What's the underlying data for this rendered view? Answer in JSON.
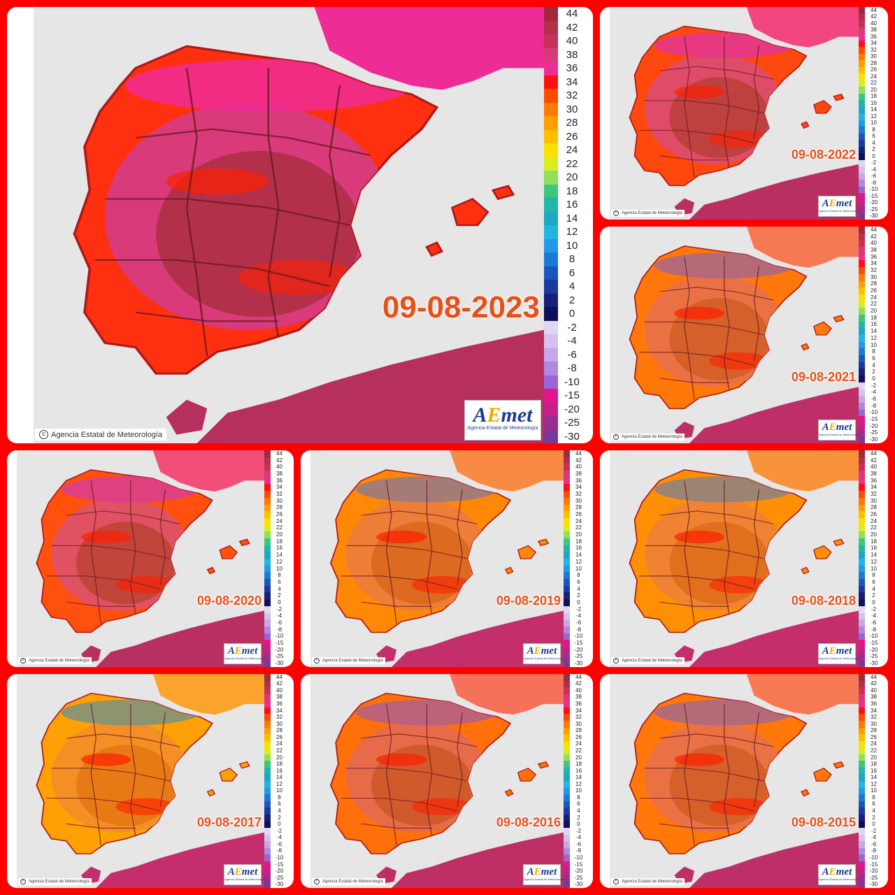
{
  "colors": {
    "background": "#ff0000",
    "panel": "#ffffff",
    "sea": "#e6e6e6",
    "date_label": "#e8501a",
    "logo_blue": "#1a3d8f",
    "logo_yellow": "#f2a900"
  },
  "scale": {
    "labels": [
      "44",
      "42",
      "40",
      "38",
      "36",
      "34",
      "32",
      "30",
      "28",
      "26",
      "24",
      "22",
      "20",
      "18",
      "16",
      "14",
      "12",
      "10",
      "8",
      "6",
      "4",
      "2",
      "0",
      "-2",
      "-4",
      "-6",
      "-8",
      "-10",
      "-15",
      "-20",
      "-25",
      "-30"
    ],
    "colors": [
      "#a02a3c",
      "#b2304a",
      "#c43258",
      "#d63a78",
      "#ee2c96",
      "#ff1010",
      "#ff4a00",
      "#ff7a00",
      "#ff9e00",
      "#ffbf00",
      "#ffe000",
      "#d7ef1e",
      "#8fe05a",
      "#3ec67a",
      "#22b6a6",
      "#1ca7c4",
      "#1fb6e2",
      "#209ae8",
      "#1c7ad6",
      "#1a56bb",
      "#1a3a9e",
      "#15207a",
      "#10105a",
      "#e2d7f1",
      "#d3c2ed",
      "#c3a8ea",
      "#ad89e0",
      "#9966d8",
      "#e21688",
      "#c4208a",
      "#9a2c92",
      "#7a3896"
    ]
  },
  "copyright": "Agencia Estatal de Meteorología",
  "logo": {
    "word_a": "A",
    "word_e": "E",
    "word_rest": "met",
    "subtitle": "Agencia Estatal de Meteorología"
  },
  "panels": [
    {
      "date": "09-08-2023",
      "intensity": 1.0
    },
    {
      "date": "09-08-2022",
      "intensity": 0.85
    },
    {
      "date": "09-08-2021",
      "intensity": 0.55
    },
    {
      "date": "09-08-2020",
      "intensity": 0.8
    },
    {
      "date": "09-08-2019",
      "intensity": 0.45
    },
    {
      "date": "09-08-2018",
      "intensity": 0.4
    },
    {
      "date": "09-08-2017",
      "intensity": 0.3
    },
    {
      "date": "09-08-2016",
      "intensity": 0.6
    },
    {
      "date": "09-08-2015",
      "intensity": 0.55
    }
  ]
}
